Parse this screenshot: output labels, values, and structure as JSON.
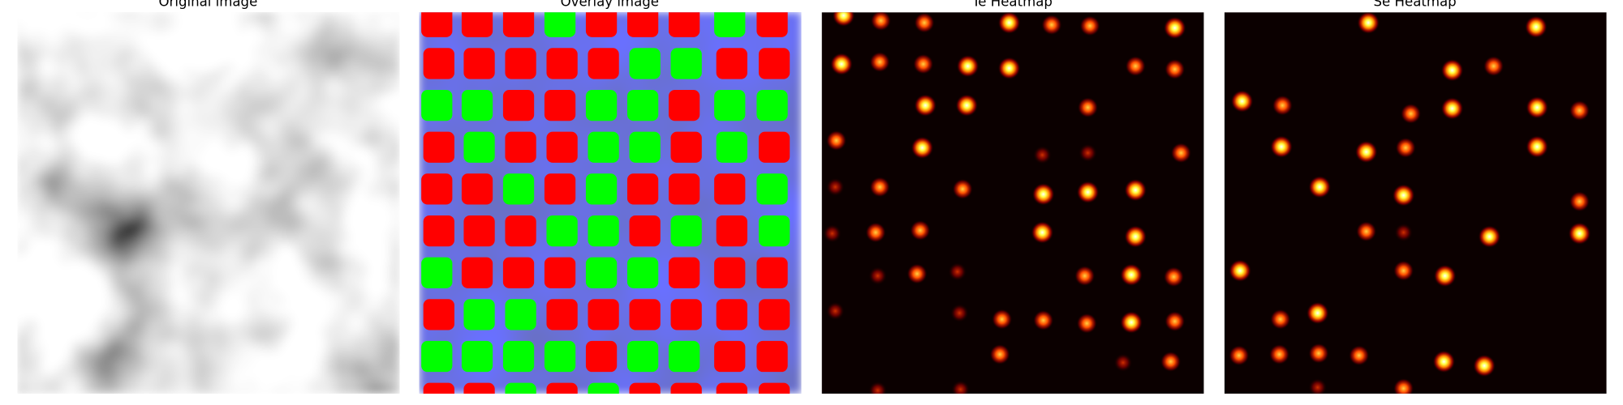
{
  "panels": [
    {
      "title": "Original image"
    },
    {
      "title": "Overlay image"
    },
    {
      "title": "Te Heatmap"
    },
    {
      "title": "Se Heatmap"
    }
  ]
}
